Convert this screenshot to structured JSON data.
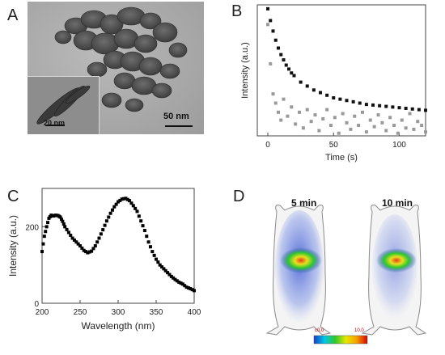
{
  "panels": {
    "a": {
      "letter": "A",
      "scale_main": "50 nm",
      "scale_inset": "20 nm"
    },
    "b": {
      "letter": "B"
    },
    "c": {
      "letter": "C"
    },
    "d": {
      "letter": "D",
      "label_left": "5 min",
      "label_right": "10 min",
      "colorbar_min": "c0.0",
      "colorbar_max": "10.0",
      "colorbar_colors": [
        "#d40000",
        "#f5a000",
        "#e8e800",
        "#2ec82e",
        "#00c8e6",
        "#1a3cc8"
      ]
    }
  },
  "chart_data": [
    {
      "type": "scatter",
      "panel": "B",
      "xlabel": "Time (s)",
      "ylabel": "Intensity (a.u.)",
      "xlim": [
        -8,
        120
      ],
      "x_ticks": [
        "0",
        "50",
        "100"
      ],
      "y_ticks": [],
      "series": [
        {
          "color": "#111111",
          "x": [
            0,
            2,
            4,
            6,
            8,
            10,
            12,
            14,
            16,
            18,
            20,
            25,
            30,
            35,
            40,
            45,
            50,
            55,
            60,
            65,
            70,
            75,
            80,
            85,
            90,
            95,
            100,
            105,
            110,
            115,
            120
          ],
          "y": [
            0.97,
            0.88,
            0.8,
            0.73,
            0.67,
            0.62,
            0.58,
            0.54,
            0.51,
            0.48,
            0.46,
            0.41,
            0.38,
            0.35,
            0.33,
            0.31,
            0.29,
            0.28,
            0.27,
            0.26,
            0.25,
            0.24,
            0.235,
            0.23,
            0.225,
            0.22,
            0.215,
            0.21,
            0.205,
            0.2,
            0.195
          ]
        },
        {
          "color": "#999999",
          "x": [
            0,
            2,
            4,
            6,
            8,
            10,
            12,
            15,
            18,
            21,
            24,
            27,
            30,
            33,
            36,
            39,
            42,
            45,
            48,
            51,
            54,
            57,
            60,
            63,
            66,
            69,
            72,
            75,
            78,
            81,
            84,
            87,
            90,
            93,
            96,
            99,
            102,
            105,
            108,
            111,
            114,
            117,
            120
          ],
          "y": [
            0.85,
            0.55,
            0.32,
            0.25,
            0.18,
            0.12,
            0.28,
            0.15,
            0.22,
            0.09,
            0.18,
            0.06,
            0.2,
            0.11,
            0.16,
            0.04,
            0.13,
            0.2,
            0.08,
            0.14,
            0.02,
            0.17,
            0.1,
            0.05,
            0.15,
            0.08,
            0.18,
            0.03,
            0.12,
            0.07,
            0.16,
            0.1,
            0.04,
            0.14,
            0.08,
            0.02,
            0.12,
            0.06,
            0.17,
            0.05,
            0.11,
            0.08,
            0.03
          ]
        }
      ]
    },
    {
      "type": "scatter",
      "panel": "C",
      "xlabel": "Wavelength  (nm)",
      "ylabel": "Intensity (a.u.)",
      "xlim": [
        200,
        400
      ],
      "ylim": [
        0,
        300
      ],
      "x_ticks": [
        200,
        250,
        300,
        350,
        400
      ],
      "y_ticks": [
        0,
        200
      ],
      "series": [
        {
          "color": "#000000",
          "x": [
            200,
            203,
            206,
            209,
            212,
            215,
            218,
            221,
            224,
            227,
            230,
            235,
            240,
            245,
            250,
            255,
            260,
            265,
            270,
            275,
            280,
            285,
            290,
            295,
            300,
            305,
            310,
            315,
            320,
            325,
            330,
            335,
            340,
            345,
            350,
            355,
            360,
            365,
            370,
            375,
            380,
            385,
            390,
            395,
            400
          ],
          "y": [
            135,
            175,
            200,
            222,
            230,
            228,
            230,
            229,
            225,
            214,
            200,
            185,
            170,
            160,
            150,
            138,
            132,
            136,
            150,
            170,
            192,
            215,
            235,
            252,
            265,
            272,
            274,
            268,
            255,
            240,
            215,
            190,
            160,
            135,
            115,
            100,
            90,
            80,
            70,
            62,
            55,
            50,
            42,
            38,
            33
          ]
        }
      ]
    }
  ]
}
